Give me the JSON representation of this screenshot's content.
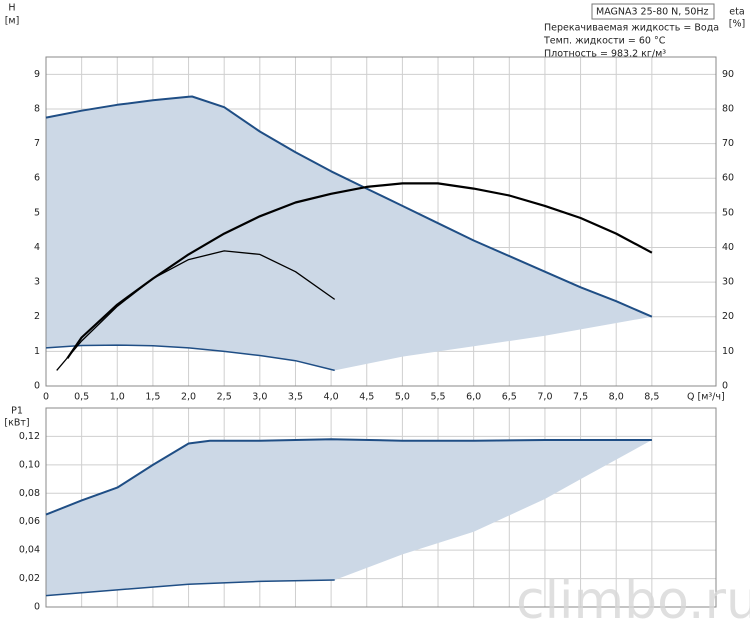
{
  "chart_data": [
    {
      "type": "line",
      "y_label": "H",
      "y_unit": "[м]",
      "y2_label": "eta",
      "y2_unit": "[%]",
      "x_label": "Q [м³/ч]",
      "info": [
        "MAGNA3 25-80 N, 50Hz",
        "Перекачиваемая жидкость = Вода",
        "Темп. жидкости = 60 °C",
        "Плотность = 983.2 кг/м³"
      ],
      "xlim": [
        0,
        9.4
      ],
      "ylim": [
        0,
        9.5
      ],
      "y2lim": [
        0,
        95
      ],
      "grid": true,
      "xticks": [
        0,
        {
          "value": 0.5,
          "label": "0,5"
        },
        {
          "value": 1,
          "label": "1,0"
        },
        {
          "value": 1.5,
          "label": "1,5"
        },
        {
          "value": 2,
          "label": "2,0"
        },
        {
          "value": 2.5,
          "label": "2,5"
        },
        {
          "value": 3,
          "label": "3,0"
        },
        {
          "value": 3.5,
          "label": "3,5"
        },
        {
          "value": 4,
          "label": "4,0"
        },
        {
          "value": 4.5,
          "label": "4,5"
        },
        {
          "value": 5,
          "label": "5,0"
        },
        {
          "value": 5.5,
          "label": "5,5"
        },
        {
          "value": 6,
          "label": "6,0"
        },
        {
          "value": 6.5,
          "label": "6,5"
        },
        {
          "value": 7,
          "label": "7,0"
        },
        {
          "value": 7.5,
          "label": "7,5"
        },
        {
          "value": 8,
          "label": "8,0"
        },
        {
          "value": 8.5,
          "label": "8,5"
        }
      ],
      "yticks": [
        0,
        1,
        2,
        3,
        4,
        5,
        6,
        7,
        8,
        9
      ],
      "y2ticks": [
        0,
        10,
        20,
        30,
        40,
        50,
        60,
        70,
        80,
        90
      ],
      "regions": [
        {
          "color": "#ccd8e6",
          "x": [
            0,
            0.5,
            1,
            1.5,
            2,
            2.05,
            2.5,
            3,
            3.5,
            4,
            4.5,
            5,
            5.5,
            6,
            6.5,
            7,
            7.5,
            8,
            8.5,
            7,
            6,
            5,
            4.05,
            3.5,
            3,
            2.5,
            2,
            1.5,
            1,
            0.5,
            0
          ],
          "values": [
            7.75,
            7.95,
            8.12,
            8.25,
            8.35,
            8.36,
            8.05,
            7.35,
            6.75,
            6.2,
            5.7,
            5.2,
            4.7,
            4.2,
            3.75,
            3.3,
            2.85,
            2.45,
            2.0,
            1.45,
            1.15,
            0.85,
            0.45,
            0.73,
            0.88,
            1.0,
            1.1,
            1.16,
            1.18,
            1.17,
            1.1
          ]
        }
      ],
      "series": [
        {
          "color": "#1f4e85",
          "width": 2,
          "x": [
            0,
            0.5,
            1,
            1.5,
            2,
            2.05,
            2.5,
            3,
            3.5,
            4,
            4.5,
            5,
            5.5,
            6,
            6.5,
            7,
            7.5,
            8,
            8.5
          ],
          "values": [
            7.75,
            7.95,
            8.12,
            8.25,
            8.35,
            8.36,
            8.05,
            7.35,
            6.75,
            6.2,
            5.7,
            5.2,
            4.7,
            4.2,
            3.75,
            3.3,
            2.85,
            2.45,
            2.0
          ]
        },
        {
          "color": "#1f4e85",
          "width": 1.5,
          "x": [
            0,
            0.5,
            1,
            1.5,
            2,
            2.5,
            3,
            3.5,
            4.05
          ],
          "values": [
            1.1,
            1.17,
            1.18,
            1.16,
            1.1,
            1.0,
            0.88,
            0.73,
            0.45
          ]
        },
        {
          "color": "#000000",
          "width": 2.2,
          "axis": "y2",
          "x": [
            0.3,
            0.5,
            1,
            1.5,
            2,
            2.5,
            3,
            3.5,
            4,
            4.5,
            5,
            5.5,
            6,
            6.5,
            7,
            7.5,
            8,
            8.5
          ],
          "values": [
            8,
            14,
            23.5,
            31,
            38,
            44,
            49,
            53,
            55.5,
            57.5,
            58.5,
            58.5,
            57,
            55,
            52,
            48.5,
            44,
            38.5
          ]
        },
        {
          "color": "#000000",
          "width": 1.3,
          "axis": "y2",
          "x": [
            0.15,
            0.5,
            1,
            1.5,
            2,
            2.5,
            3,
            3.5,
            4.05
          ],
          "values": [
            4.5,
            13,
            23,
            31,
            36.5,
            39,
            38,
            33,
            25
          ]
        }
      ]
    },
    {
      "type": "line",
      "y_label": "P1",
      "y_unit": "[кВт]",
      "xlim": [
        0,
        9.4
      ],
      "ylim": [
        0,
        0.14
      ],
      "grid": true,
      "yticks": [
        0,
        {
          "value": 0.02,
          "label": "0,02"
        },
        {
          "value": 0.04,
          "label": "0,04"
        },
        {
          "value": 0.06,
          "label": "0,06"
        },
        {
          "value": 0.08,
          "label": "0,08"
        },
        {
          "value": 0.1,
          "label": "0,10"
        },
        {
          "value": 0.12,
          "label": "0,12"
        }
      ],
      "regions": [
        {
          "color": "#ccd8e6",
          "x": [
            0,
            0.5,
            1,
            1.5,
            2,
            2.3,
            3,
            4,
            5,
            6,
            7,
            8.5,
            7.5,
            7,
            6,
            5,
            4.05,
            3,
            2,
            1,
            0
          ],
          "values": [
            0.065,
            0.075,
            0.084,
            0.1,
            0.115,
            0.117,
            0.117,
            0.118,
            0.117,
            0.117,
            0.1175,
            0.1175,
            0.09,
            0.076,
            0.053,
            0.037,
            0.019,
            0.018,
            0.016,
            0.012,
            0.008
          ]
        }
      ],
      "series": [
        {
          "color": "#1f4e85",
          "width": 2,
          "x": [
            0,
            0.5,
            1,
            1.5,
            2,
            2.3,
            3,
            4,
            5,
            6,
            7,
            8.5
          ],
          "values": [
            0.065,
            0.075,
            0.084,
            0.1,
            0.115,
            0.117,
            0.117,
            0.118,
            0.117,
            0.117,
            0.1175,
            0.1175
          ]
        },
        {
          "color": "#1f4e85",
          "width": 1.5,
          "x": [
            0,
            1,
            2,
            3,
            4.05
          ],
          "values": [
            0.008,
            0.012,
            0.016,
            0.018,
            0.019
          ]
        }
      ]
    }
  ],
  "watermark": "climbo.ru"
}
